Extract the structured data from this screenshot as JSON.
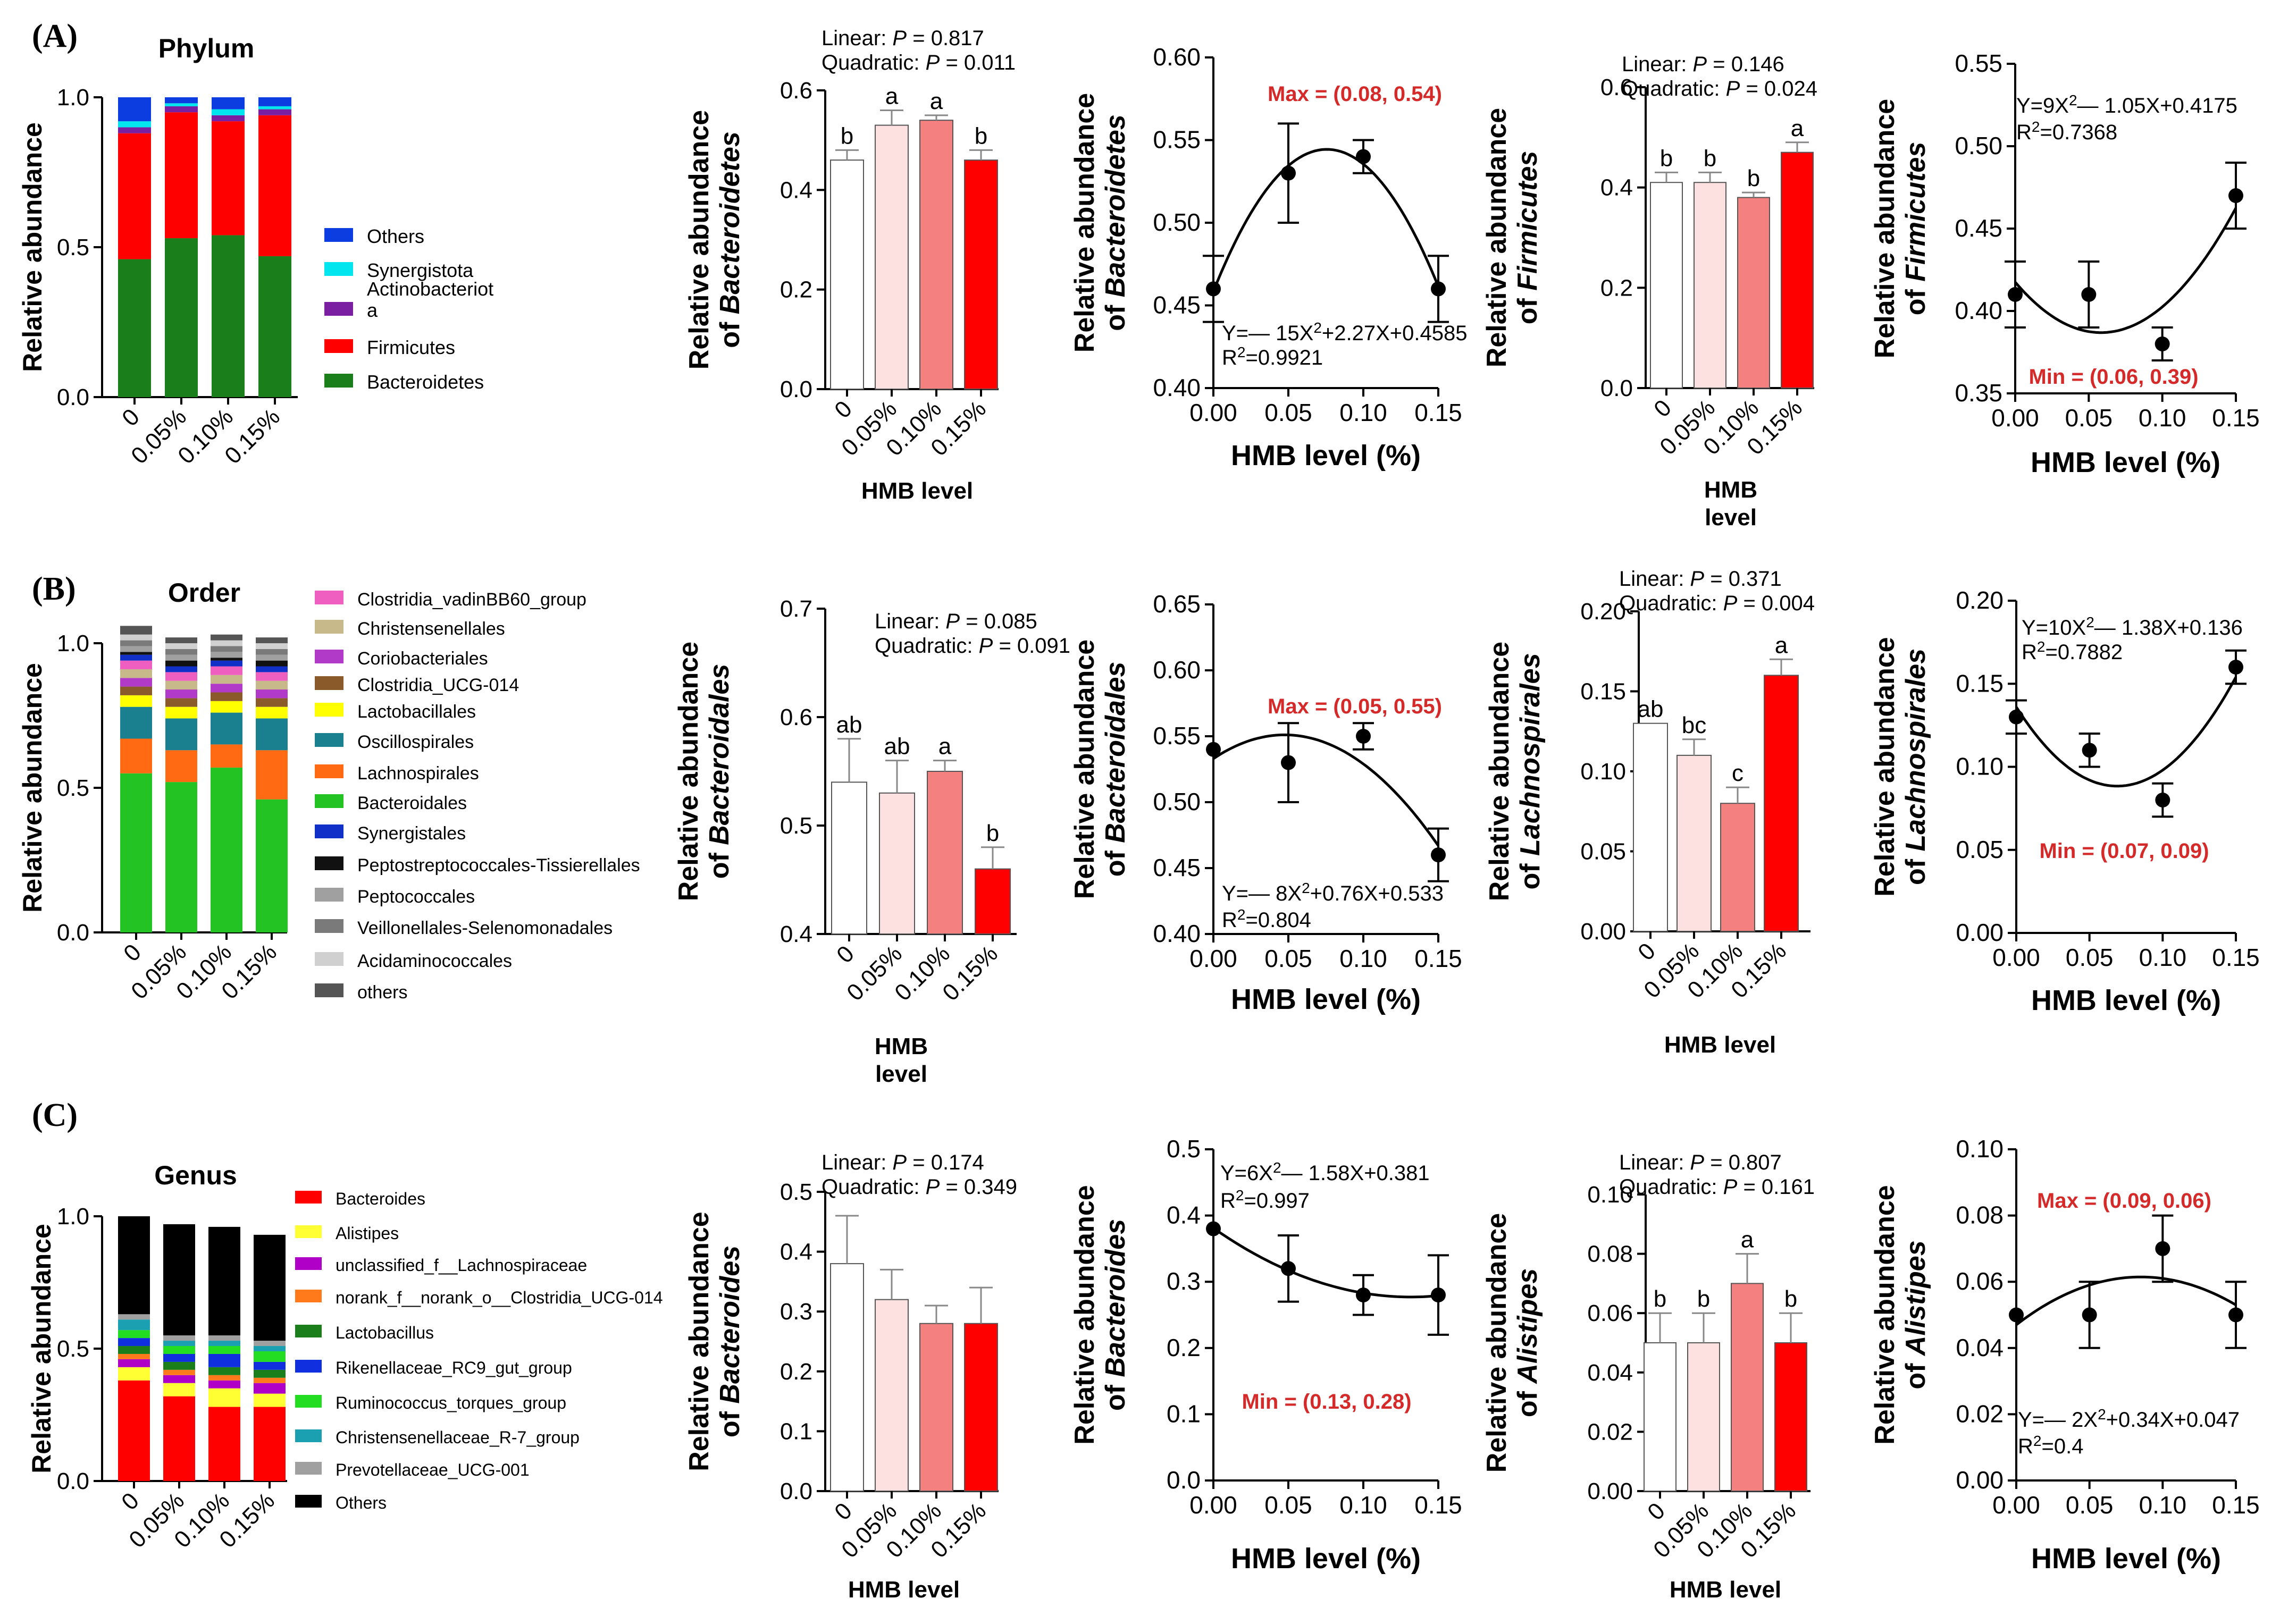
{
  "figure": {
    "panel_labels": [
      "(A)",
      "(B)",
      "(C)"
    ],
    "colors": {
      "bar_fill": [
        "#ffffff",
        "#fde0e0",
        "#f48080",
        "#ff0000"
      ],
      "axis": "#000000",
      "highlight": "#d42a2a"
    }
  },
  "chart_data": [
    {
      "id": "A1",
      "type": "bar",
      "stacked": true,
      "title": "Phylum",
      "ylabel": "Relative abundance",
      "xlabel": "",
      "ylim": [
        0,
        1
      ],
      "yticks": [
        "0.0",
        "0.5",
        "1.0"
      ],
      "categories": [
        "0",
        "0.05%",
        "0.10%",
        "0.15%"
      ],
      "series": [
        {
          "name": "Bacteroidetes",
          "color": "#1a7f1a",
          "values": [
            0.46,
            0.53,
            0.54,
            0.47
          ]
        },
        {
          "name": "Firmicutes",
          "color": "#ff0000",
          "values": [
            0.42,
            0.42,
            0.38,
            0.47
          ]
        },
        {
          "name": "Actinobacteriota",
          "color": "#7b1fa2",
          "values": [
            0.02,
            0.02,
            0.02,
            0.02
          ]
        },
        {
          "name": "Synergistota",
          "color": "#00e5ee",
          "values": [
            0.02,
            0.01,
            0.02,
            0.01
          ]
        },
        {
          "name": "Others",
          "color": "#0b3de0",
          "values": [
            0.08,
            0.02,
            0.04,
            0.03
          ]
        }
      ],
      "legend": [
        "Others",
        "Synergistota",
        "Actinobacteriota",
        "Firmicutes",
        "Bacteroidetes"
      ]
    },
    {
      "id": "B1",
      "type": "bar",
      "stacked": true,
      "title": "Order",
      "ylabel": "Relative abundance",
      "xlabel": "",
      "ylim": [
        0,
        1
      ],
      "yticks": [
        "0.0",
        "0.5",
        "1.0"
      ],
      "categories": [
        "0",
        "0.05%",
        "0.10%",
        "0.15%"
      ],
      "series": [
        {
          "name": "Bacteroidales",
          "color": "#22c322",
          "values": [
            0.55,
            0.52,
            0.57,
            0.46
          ]
        },
        {
          "name": "Lachnospirales",
          "color": "#ff6a13",
          "values": [
            0.12,
            0.11,
            0.08,
            0.17
          ]
        },
        {
          "name": "Oscillospirales",
          "color": "#1a7f8e",
          "values": [
            0.11,
            0.11,
            0.11,
            0.11
          ]
        },
        {
          "name": "Lactobacillales",
          "color": "#ffff00",
          "values": [
            0.04,
            0.04,
            0.04,
            0.04
          ]
        },
        {
          "name": "Clostridia_UCG-014",
          "color": "#8b5a2b",
          "values": [
            0.03,
            0.03,
            0.03,
            0.03
          ]
        },
        {
          "name": "Coriobacteriales",
          "color": "#b23ac8",
          "values": [
            0.03,
            0.03,
            0.03,
            0.03
          ]
        },
        {
          "name": "Christensenellales",
          "color": "#c8b98a",
          "values": [
            0.03,
            0.03,
            0.03,
            0.03
          ]
        },
        {
          "name": "Clostridia_vadinBB60_group",
          "color": "#ef5fc0",
          "values": [
            0.03,
            0.03,
            0.03,
            0.03
          ]
        },
        {
          "name": "Synergistales",
          "color": "#1030c8",
          "values": [
            0.02,
            0.02,
            0.02,
            0.02
          ]
        },
        {
          "name": "Peptostreptococcales-Tissierellales",
          "color": "#111111",
          "values": [
            0.01,
            0.02,
            0.01,
            0.02
          ]
        },
        {
          "name": "Peptococcales",
          "color": "#a0a0a0",
          "values": [
            0.02,
            0.02,
            0.02,
            0.02
          ]
        },
        {
          "name": "Veillonellales-Selenomonadales",
          "color": "#7a7a7a",
          "values": [
            0.02,
            0.02,
            0.02,
            0.02
          ]
        },
        {
          "name": "Acidaminococcales",
          "color": "#d0d0d0",
          "values": [
            0.02,
            0.02,
            0.02,
            0.02
          ]
        },
        {
          "name": "others",
          "color": "#555555",
          "values": [
            0.03,
            0.02,
            0.02,
            0.02
          ]
        }
      ],
      "legend": [
        "Clostridia_vadinBB60_group",
        "Christensenellales",
        "Coriobacteriales",
        "Clostridia_UCG-014",
        "Lactobacillales",
        "Oscillospirales",
        "Lachnospirales",
        "Bacteroidales",
        "Synergistales",
        "Peptostreptococcales-Tissierellales",
        "Peptococcales",
        "Veillonellales-Selenomonadales",
        "Acidaminococcales",
        "others"
      ]
    },
    {
      "id": "C1",
      "type": "bar",
      "stacked": true,
      "title": "Genus",
      "ylabel": "Relative abundance",
      "xlabel": "",
      "ylim": [
        0,
        1
      ],
      "yticks": [
        "0.0",
        "0.5",
        "1.0"
      ],
      "categories": [
        "0",
        "0.05%",
        "0.10%",
        "0.15%"
      ],
      "series": [
        {
          "name": "Bacteroides",
          "color": "#ff0000",
          "values": [
            0.38,
            0.32,
            0.28,
            0.28
          ]
        },
        {
          "name": "Alistipes",
          "color": "#ffff33",
          "values": [
            0.05,
            0.05,
            0.07,
            0.05
          ]
        },
        {
          "name": "unclassified_f__Lachnospiraceae",
          "color": "#b000c8",
          "values": [
            0.03,
            0.03,
            0.03,
            0.04
          ]
        },
        {
          "name": "norank_f__norank_o__Clostridia_UCG-014",
          "color": "#ff7a1a",
          "values": [
            0.02,
            0.02,
            0.02,
            0.02
          ]
        },
        {
          "name": "Lactobacillus",
          "color": "#1a7f1a",
          "values": [
            0.03,
            0.03,
            0.03,
            0.03
          ]
        },
        {
          "name": "Rikenellaceae_RC9_gut_group",
          "color": "#1030e0",
          "values": [
            0.03,
            0.03,
            0.05,
            0.03
          ]
        },
        {
          "name": "Ruminococcus_torques_group",
          "color": "#22dd22",
          "values": [
            0.03,
            0.03,
            0.03,
            0.04
          ]
        },
        {
          "name": "Christensenellaceae_R-7_group",
          "color": "#1aa0b0",
          "values": [
            0.04,
            0.02,
            0.02,
            0.02
          ]
        },
        {
          "name": "Prevotellaceae_UCG-001",
          "color": "#a0a0a0",
          "values": [
            0.02,
            0.02,
            0.02,
            0.02
          ]
        },
        {
          "name": "Others",
          "color": "#000000",
          "values": [
            0.37,
            0.42,
            0.41,
            0.4
          ]
        }
      ],
      "legend": [
        "Bacteroides",
        "Alistipes",
        "unclassified_f__Lachnospiraceae",
        "norank_f__norank_o__Clostridia_UCG-014",
        "Lactobacillus",
        "Rikenellaceae_RC9_gut_group",
        "Ruminococcus_torques_group",
        "Christensenellaceae_R-7_group",
        "Prevotellaceae_UCG-001",
        "Others"
      ]
    },
    {
      "id": "A2",
      "type": "bar",
      "title": "",
      "ylabel": [
        "Relative abundance",
        "of ",
        "Bacteroidetes"
      ],
      "xlabel": [
        "HMB level"
      ],
      "ylim": [
        0,
        0.6
      ],
      "yticks": [
        "0.0",
        "0.2",
        "0.4",
        "0.6"
      ],
      "categories": [
        "0",
        "0.05%",
        "0.10%",
        "0.15%"
      ],
      "values": [
        0.46,
        0.53,
        0.54,
        0.46
      ],
      "errors": [
        0.02,
        0.03,
        0.01,
        0.02
      ],
      "letters": [
        "b",
        "a",
        "a",
        "b"
      ],
      "annotation": [
        [
          "Linear: ",
          "P",
          " = 0.817"
        ],
        [
          "Quadratic: ",
          "P",
          " = 0.011"
        ]
      ]
    },
    {
      "id": "A3",
      "type": "scatter",
      "title": "",
      "ylabel": [
        "Relative abundance",
        "of ",
        "Bacteroidetes"
      ],
      "xlabel": "HMB level (%)",
      "xlim": [
        0,
        0.15
      ],
      "xticks": [
        "0.00",
        "0.05",
        "0.10",
        "0.15"
      ],
      "ylim": [
        0.4,
        0.6
      ],
      "yticks": [
        "0.40",
        "0.45",
        "0.50",
        "0.55",
        "0.60"
      ],
      "x": [
        0,
        0.05,
        0.1,
        0.15
      ],
      "y": [
        0.46,
        0.53,
        0.54,
        0.46
      ],
      "errors": [
        0.02,
        0.03,
        0.01,
        0.02
      ],
      "fit": {
        "a": -15,
        "b": 2.27,
        "c": 0.4585
      },
      "equation": "Y=— 15X²+2.27X+0.4585",
      "r2": "R²=0.9921",
      "extremum": "Max = (0.08, 0.54)"
    },
    {
      "id": "A4",
      "type": "bar",
      "title": "",
      "ylabel": [
        "Relative abundance",
        "of ",
        "Firmicutes"
      ],
      "xlabel": [
        "HMB",
        "level"
      ],
      "ylim": [
        0,
        0.6
      ],
      "yticks": [
        "0.0",
        "0.2",
        "0.4",
        "0.6"
      ],
      "categories": [
        "0",
        "0.05%",
        "0.10%",
        "0.15%"
      ],
      "values": [
        0.41,
        0.41,
        0.38,
        0.47
      ],
      "errors": [
        0.02,
        0.02,
        0.01,
        0.02
      ],
      "letters": [
        "b",
        "b",
        "b",
        "a"
      ],
      "annotation": [
        [
          "Linear: ",
          "P",
          " = 0.146"
        ],
        [
          "Quadratic: ",
          "P",
          " = 0.024"
        ]
      ]
    },
    {
      "id": "A5",
      "type": "scatter",
      "title": "",
      "ylabel": [
        "Relative abundance",
        "of ",
        "Firmicutes"
      ],
      "xlabel": "HMB level (%)",
      "xlim": [
        0,
        0.15
      ],
      "xticks": [
        "0.00",
        "0.05",
        "0.10",
        "0.15"
      ],
      "ylim": [
        0.35,
        0.55
      ],
      "yticks": [
        "0.35",
        "0.40",
        "0.45",
        "0.50",
        "0.55"
      ],
      "x": [
        0,
        0.05,
        0.1,
        0.15
      ],
      "y": [
        0.41,
        0.41,
        0.38,
        0.47
      ],
      "errors": [
        0.02,
        0.02,
        0.01,
        0.02
      ],
      "fit": {
        "a": 9,
        "b": -1.05,
        "c": 0.4175
      },
      "equation": "Y=9X²— 1.05X+0.4175",
      "r2": "R²=0.7368",
      "extremum": "Min = (0.06, 0.39)"
    },
    {
      "id": "B2",
      "type": "bar",
      "title": "",
      "ylabel": [
        "Relative abundance",
        "of ",
        "Bacteroidales"
      ],
      "xlabel": [
        "HMB",
        "level"
      ],
      "ylim": [
        0.4,
        0.7
      ],
      "yticks": [
        "0.4",
        "0.5",
        "0.6",
        "0.7"
      ],
      "categories": [
        "0",
        "0.05%",
        "0.10%",
        "0.15%"
      ],
      "values": [
        0.54,
        0.53,
        0.55,
        0.46
      ],
      "errors": [
        0.04,
        0.03,
        0.01,
        0.02
      ],
      "letters": [
        "ab",
        "ab",
        "a",
        "b"
      ],
      "annotation": [
        [
          "Linear: ",
          "P",
          " = 0.085"
        ],
        [
          "Quadratic: ",
          "P",
          " = 0.091"
        ]
      ]
    },
    {
      "id": "B3",
      "type": "scatter",
      "title": "",
      "ylabel": [
        "Relative abundance",
        "of ",
        "Bacteroidales"
      ],
      "xlabel": "HMB level (%)",
      "xlim": [
        0,
        0.15
      ],
      "xticks": [
        "0.00",
        "0.05",
        "0.10",
        "0.15"
      ],
      "ylim": [
        0.4,
        0.65
      ],
      "yticks": [
        "0.40",
        "0.45",
        "0.50",
        "0.55",
        "0.60",
        "0.65"
      ],
      "x": [
        0,
        0.05,
        0.1,
        0.15
      ],
      "y": [
        0.54,
        0.53,
        0.55,
        0.46
      ],
      "errors": [
        0,
        0.03,
        0.01,
        0.02
      ],
      "fit": {
        "a": -8,
        "b": 0.76,
        "c": 0.533
      },
      "equation": "Y=— 8X²+0.76X+0.533",
      "r2": "R²=0.804",
      "extremum": "Max = (0.05, 0.55)"
    },
    {
      "id": "B4",
      "type": "bar",
      "title": "",
      "ylabel": [
        "Relative abundance",
        "of ",
        "Lachnospirales"
      ],
      "xlabel": [
        "HMB level"
      ],
      "ylim": [
        0,
        0.2
      ],
      "yticks": [
        "0.00",
        "0.05",
        "0.10",
        "0.15",
        "0.20"
      ],
      "categories": [
        "0",
        "0.05%",
        "0.10%",
        "0.15%"
      ],
      "values": [
        0.13,
        0.11,
        0.08,
        0.16
      ],
      "errors": [
        0,
        0.01,
        0.01,
        0.01
      ],
      "letters": [
        "ab",
        "bc",
        "c",
        "a"
      ],
      "annotation": [
        [
          "Linear: ",
          "P",
          " = 0.371"
        ],
        [
          "Quadratic: ",
          "P",
          " = 0.004"
        ]
      ]
    },
    {
      "id": "B5",
      "type": "scatter",
      "title": "",
      "ylabel": [
        "Relative abundance",
        "of ",
        "Lachnospirales"
      ],
      "xlabel": "HMB level (%)",
      "xlim": [
        0,
        0.15
      ],
      "xticks": [
        "0.00",
        "0.05",
        "0.10",
        "0.15"
      ],
      "ylim": [
        0,
        0.2
      ],
      "yticks": [
        "0.00",
        "0.05",
        "0.10",
        "0.15",
        "0.20"
      ],
      "x": [
        0,
        0.05,
        0.1,
        0.15
      ],
      "y": [
        0.13,
        0.11,
        0.08,
        0.16
      ],
      "errors": [
        0.01,
        0.01,
        0.01,
        0.01
      ],
      "fit": {
        "a": 10,
        "b": -1.38,
        "c": 0.136
      },
      "equation": "Y=10X²— 1.38X+0.136",
      "r2": "R²=0.7882",
      "extremum": "Min = (0.07, 0.09)"
    },
    {
      "id": "C2",
      "type": "bar",
      "title": "",
      "ylabel": [
        "Relative abundance",
        "of ",
        "Bacteroides"
      ],
      "xlabel": [
        "HMB level"
      ],
      "ylim": [
        0,
        0.5
      ],
      "yticks": [
        "0.0",
        "0.1",
        "0.2",
        "0.3",
        "0.4",
        "0.5"
      ],
      "categories": [
        "0",
        "0.05%",
        "0.10%",
        "0.15%"
      ],
      "values": [
        0.38,
        0.32,
        0.28,
        0.28
      ],
      "errors": [
        0.08,
        0.05,
        0.03,
        0.06
      ],
      "letters": [
        "",
        "",
        "",
        ""
      ],
      "annotation": [
        [
          "Linear: ",
          "P",
          " = 0.174"
        ],
        [
          "Quadratic: ",
          "P",
          " = 0.349"
        ]
      ]
    },
    {
      "id": "C3",
      "type": "scatter",
      "title": "",
      "ylabel": [
        "Relative abundance",
        "of ",
        "Bacteroides"
      ],
      "xlabel": "HMB level (%)",
      "xlim": [
        0,
        0.15
      ],
      "xticks": [
        "0.00",
        "0.05",
        "0.10",
        "0.15"
      ],
      "ylim": [
        0,
        0.5
      ],
      "yticks": [
        "0.0",
        "0.1",
        "0.2",
        "0.3",
        "0.4",
        "0.5"
      ],
      "x": [
        0,
        0.05,
        0.1,
        0.15
      ],
      "y": [
        0.38,
        0.32,
        0.28,
        0.28
      ],
      "errors": [
        0,
        0.05,
        0.03,
        0.06
      ],
      "fit": {
        "a": 6,
        "b": -1.58,
        "c": 0.381
      },
      "equation": "Y=6X²— 1.58X+0.381",
      "r2": "R²=0.997",
      "extremum": "Min = (0.13, 0.28)"
    },
    {
      "id": "C4",
      "type": "bar",
      "title": "",
      "ylabel": [
        "Relative abundance",
        "of ",
        "Alistipes"
      ],
      "xlabel": [
        "HMB level"
      ],
      "ylim": [
        0,
        0.1
      ],
      "yticks": [
        "0.00",
        "0.02",
        "0.04",
        "0.06",
        "0.08",
        "0.10"
      ],
      "categories": [
        "0",
        "0.05%",
        "0.10%",
        "0.15%"
      ],
      "values": [
        0.05,
        0.05,
        0.07,
        0.05
      ],
      "errors": [
        0.01,
        0.01,
        0.01,
        0.01
      ],
      "letters": [
        "b",
        "b",
        "a",
        "b"
      ],
      "annotation": [
        [
          "Linear: ",
          "P",
          " = 0.807"
        ],
        [
          "Quadratic: ",
          "P",
          " = 0.161"
        ]
      ]
    },
    {
      "id": "C5",
      "type": "scatter",
      "title": "",
      "ylabel": [
        "Relative abundance",
        "of ",
        "Alistipes"
      ],
      "xlabel": "HMB level (%)",
      "xlim": [
        0,
        0.15
      ],
      "xticks": [
        "0.00",
        "0.05",
        "0.10",
        "0.15"
      ],
      "ylim": [
        0,
        0.1
      ],
      "yticks": [
        "0.00",
        "0.02",
        "0.04",
        "0.06",
        "0.08",
        "0.10"
      ],
      "x": [
        0,
        0.05,
        0.1,
        0.15
      ],
      "y": [
        0.05,
        0.05,
        0.07,
        0.05
      ],
      "errors": [
        0,
        0.01,
        0.01,
        0.01
      ],
      "fit": {
        "a": -2,
        "b": 0.34,
        "c": 0.047
      },
      "equation": "Y=— 2X²+0.34X+0.047",
      "r2": "R²=0.4",
      "extremum": "Max = (0.09, 0.06)"
    }
  ]
}
